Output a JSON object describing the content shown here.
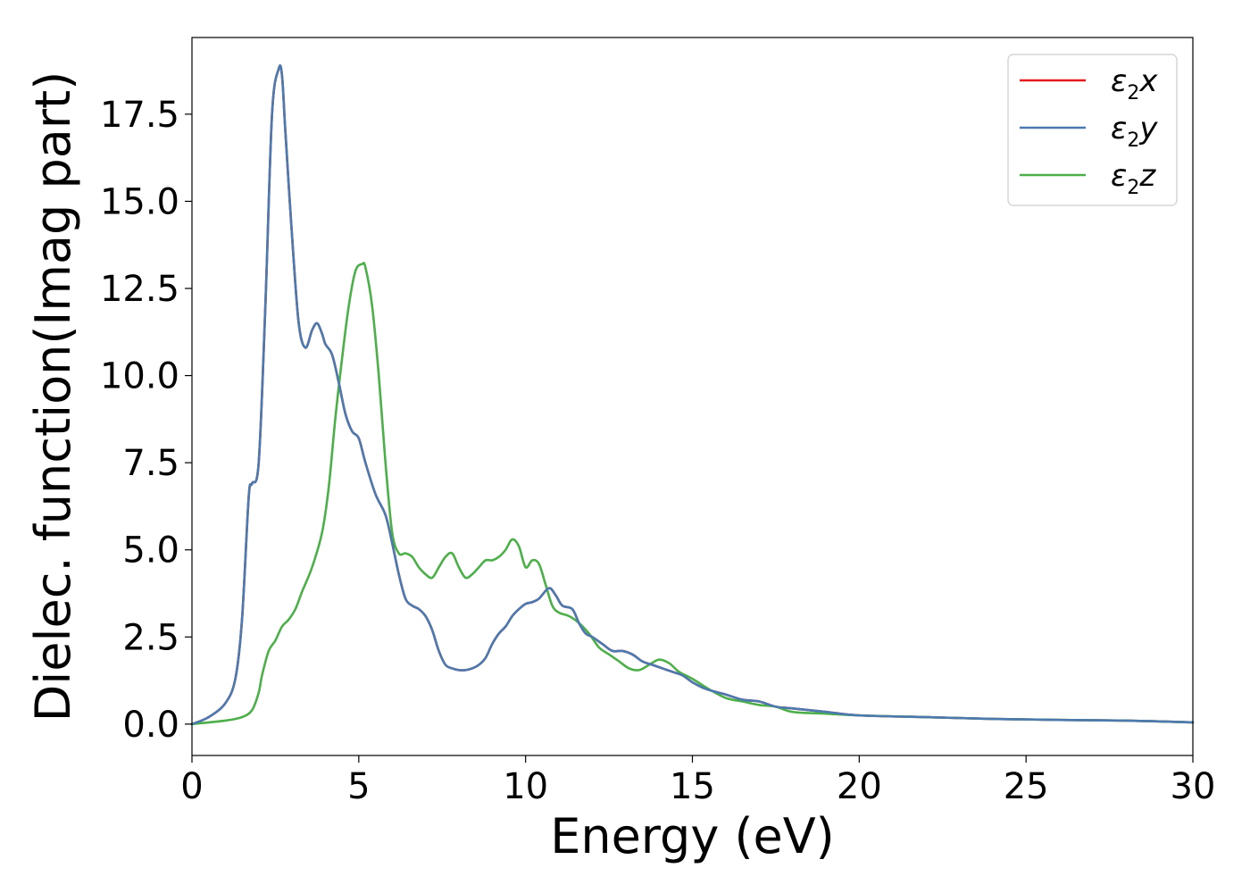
{
  "chart_data": {
    "type": "line",
    "xlabel": "Energy (eV)",
    "ylabel": "Dielec. function(Imag part)",
    "xlim": [
      0,
      30
    ],
    "ylim": [
      -0.9,
      19.7
    ],
    "xticks": [
      0,
      5,
      10,
      15,
      20,
      25,
      30
    ],
    "xtick_labels": [
      "0",
      "5",
      "10",
      "15",
      "20",
      "25",
      "30"
    ],
    "yticks": [
      0.0,
      2.5,
      5.0,
      7.5,
      10.0,
      12.5,
      15.0,
      17.5
    ],
    "ytick_labels": [
      "0.0",
      "2.5",
      "5.0",
      "7.5",
      "10.0",
      "12.5",
      "15.0",
      "17.5"
    ],
    "grid": false,
    "legend_position": "top-right",
    "series": [
      {
        "name": "ε2x",
        "legend": {
          "base": "ε",
          "sub": "2",
          "tail": "x"
        },
        "color": "#e41a1c",
        "x": [
          0,
          0.5,
          1.0,
          1.3,
          1.5,
          1.7,
          1.8,
          2.0,
          2.2,
          2.4,
          2.6,
          2.7,
          2.8,
          3.0,
          3.2,
          3.4,
          3.6,
          3.75,
          3.9,
          4.0,
          4.2,
          4.4,
          4.6,
          4.8,
          5.0,
          5.2,
          5.5,
          5.8,
          6.0,
          6.2,
          6.4,
          6.6,
          6.8,
          7.0,
          7.2,
          7.4,
          7.6,
          7.8,
          8.0,
          8.2,
          8.4,
          8.6,
          8.8,
          9.0,
          9.2,
          9.4,
          9.6,
          9.8,
          10.0,
          10.2,
          10.4,
          10.7,
          10.9,
          11.1,
          11.4,
          11.6,
          11.8,
          12.0,
          12.3,
          12.6,
          12.9,
          13.2,
          13.5,
          13.8,
          14.1,
          14.4,
          14.7,
          15.0,
          15.3,
          15.6,
          16.0,
          16.5,
          17.0,
          17.5,
          18.0,
          19.0,
          20.0,
          22.0,
          24.0,
          26.0,
          28.0,
          30.0
        ],
        "y": [
          0.0,
          0.2,
          0.6,
          1.3,
          3.0,
          6.5,
          6.9,
          7.5,
          12.0,
          17.5,
          18.8,
          18.6,
          17.0,
          14.0,
          11.5,
          10.8,
          11.3,
          11.5,
          11.2,
          10.9,
          10.6,
          9.8,
          8.9,
          8.4,
          8.2,
          7.5,
          6.6,
          6.0,
          5.2,
          4.3,
          3.6,
          3.4,
          3.3,
          3.1,
          2.7,
          2.1,
          1.7,
          1.6,
          1.55,
          1.55,
          1.6,
          1.7,
          1.9,
          2.3,
          2.6,
          2.8,
          3.1,
          3.3,
          3.45,
          3.5,
          3.6,
          3.9,
          3.7,
          3.4,
          3.3,
          2.9,
          2.6,
          2.5,
          2.3,
          2.1,
          2.1,
          2.0,
          1.8,
          1.7,
          1.6,
          1.5,
          1.4,
          1.2,
          1.05,
          0.95,
          0.85,
          0.7,
          0.65,
          0.5,
          0.45,
          0.35,
          0.25,
          0.2,
          0.15,
          0.12,
          0.1,
          0.05
        ]
      },
      {
        "name": "ε2y",
        "legend": {
          "base": "ε",
          "sub": "2",
          "tail": "y"
        },
        "color": "#4a7ab0",
        "x": [
          0,
          0.5,
          1.0,
          1.3,
          1.5,
          1.7,
          1.8,
          2.0,
          2.2,
          2.4,
          2.6,
          2.7,
          2.8,
          3.0,
          3.2,
          3.4,
          3.6,
          3.75,
          3.9,
          4.0,
          4.2,
          4.4,
          4.6,
          4.8,
          5.0,
          5.2,
          5.5,
          5.8,
          6.0,
          6.2,
          6.4,
          6.6,
          6.8,
          7.0,
          7.2,
          7.4,
          7.6,
          7.8,
          8.0,
          8.2,
          8.4,
          8.6,
          8.8,
          9.0,
          9.2,
          9.4,
          9.6,
          9.8,
          10.0,
          10.2,
          10.4,
          10.7,
          10.9,
          11.1,
          11.4,
          11.6,
          11.8,
          12.0,
          12.3,
          12.6,
          12.9,
          13.2,
          13.5,
          13.8,
          14.1,
          14.4,
          14.7,
          15.0,
          15.3,
          15.6,
          16.0,
          16.5,
          17.0,
          17.5,
          18.0,
          19.0,
          20.0,
          22.0,
          24.0,
          26.0,
          28.0,
          30.0
        ],
        "y": [
          0.0,
          0.2,
          0.6,
          1.3,
          3.0,
          6.5,
          6.9,
          7.5,
          12.0,
          17.5,
          18.8,
          18.6,
          17.0,
          14.0,
          11.5,
          10.8,
          11.3,
          11.5,
          11.2,
          10.9,
          10.6,
          9.8,
          8.9,
          8.4,
          8.2,
          7.5,
          6.6,
          6.0,
          5.2,
          4.3,
          3.6,
          3.4,
          3.3,
          3.1,
          2.7,
          2.1,
          1.7,
          1.6,
          1.55,
          1.55,
          1.6,
          1.7,
          1.9,
          2.3,
          2.6,
          2.8,
          3.1,
          3.3,
          3.45,
          3.5,
          3.6,
          3.9,
          3.7,
          3.4,
          3.3,
          2.9,
          2.6,
          2.5,
          2.3,
          2.1,
          2.1,
          2.0,
          1.8,
          1.7,
          1.6,
          1.5,
          1.4,
          1.2,
          1.05,
          0.95,
          0.85,
          0.7,
          0.65,
          0.5,
          0.45,
          0.35,
          0.25,
          0.2,
          0.15,
          0.12,
          0.1,
          0.05
        ]
      },
      {
        "name": "ε2z",
        "legend": {
          "base": "ε",
          "sub": "2",
          "tail": "z"
        },
        "color": "#4daf4a",
        "x": [
          0,
          1.0,
          1.5,
          1.8,
          2.0,
          2.1,
          2.3,
          2.5,
          2.7,
          2.9,
          3.1,
          3.3,
          3.6,
          3.9,
          4.1,
          4.3,
          4.5,
          4.7,
          4.9,
          5.1,
          5.2,
          5.4,
          5.6,
          5.8,
          6.0,
          6.2,
          6.4,
          6.6,
          6.8,
          7.0,
          7.2,
          7.4,
          7.6,
          7.8,
          8.0,
          8.2,
          8.4,
          8.6,
          8.8,
          9.0,
          9.2,
          9.4,
          9.6,
          9.8,
          10.0,
          10.2,
          10.4,
          10.6,
          10.8,
          11.0,
          11.3,
          11.6,
          11.9,
          12.2,
          12.5,
          12.8,
          13.1,
          13.4,
          13.7,
          14.0,
          14.3,
          14.6,
          15.0,
          15.5,
          16.0,
          16.5,
          17.0,
          17.5,
          18.0,
          19.0,
          20.0,
          22.0,
          24.0,
          26.0,
          28.0,
          30.0
        ],
        "y": [
          0.0,
          0.1,
          0.2,
          0.4,
          0.9,
          1.4,
          2.1,
          2.4,
          2.8,
          3.0,
          3.3,
          3.8,
          4.5,
          5.5,
          6.8,
          8.8,
          10.5,
          12.0,
          13.0,
          13.2,
          13.1,
          12.0,
          10.0,
          7.5,
          5.5,
          4.9,
          4.9,
          4.8,
          4.5,
          4.3,
          4.2,
          4.5,
          4.8,
          4.9,
          4.5,
          4.2,
          4.3,
          4.5,
          4.7,
          4.7,
          4.8,
          5.0,
          5.3,
          5.1,
          4.5,
          4.7,
          4.6,
          4.0,
          3.4,
          3.2,
          3.1,
          2.9,
          2.6,
          2.2,
          2.0,
          1.8,
          1.6,
          1.55,
          1.7,
          1.85,
          1.75,
          1.5,
          1.3,
          1.0,
          0.75,
          0.65,
          0.55,
          0.5,
          0.35,
          0.3,
          0.25,
          0.2,
          0.15,
          0.12,
          0.1,
          0.05
        ]
      }
    ]
  }
}
